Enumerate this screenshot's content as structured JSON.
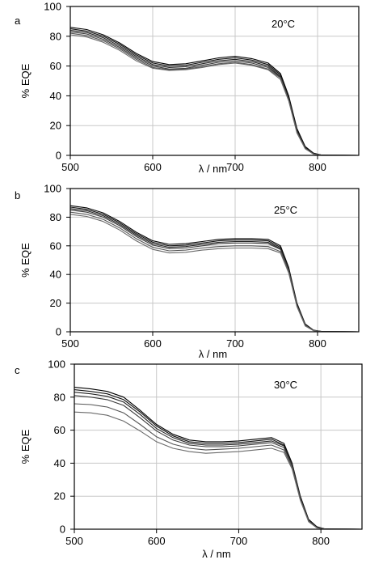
{
  "chart_data": [
    {
      "type": "line",
      "panel_label": "a",
      "annotation": "20°C",
      "xlabel": "λ / nm",
      "ylabel": "% EQE",
      "xlim": [
        500,
        850
      ],
      "ylim": [
        0,
        100
      ],
      "xticks": [
        500,
        600,
        700,
        800
      ],
      "yticks": [
        0,
        20,
        40,
        60,
        80,
        100
      ],
      "grid": true,
      "x": [
        500,
        520,
        540,
        560,
        580,
        600,
        620,
        640,
        660,
        680,
        700,
        720,
        740,
        755,
        765,
        775,
        785,
        795,
        805,
        850
      ],
      "series": [
        {
          "values": [
            86.0,
            84.5,
            81.0,
            75.5,
            68.5,
            63.0,
            61.0,
            61.5,
            63.5,
            65.5,
            66.5,
            65.0,
            62.0,
            55.0,
            40.0,
            18.0,
            6.0,
            1.5,
            0.2,
            0.0
          ]
        },
        {
          "values": [
            85.0,
            83.5,
            80.0,
            74.5,
            67.5,
            62.0,
            60.0,
            60.5,
            62.5,
            64.5,
            65.5,
            64.0,
            61.0,
            54.0,
            39.0,
            17.0,
            5.5,
            1.2,
            0.1,
            0.0
          ]
        },
        {
          "values": [
            84.0,
            82.5,
            79.0,
            73.5,
            66.5,
            61.0,
            59.0,
            59.5,
            61.5,
            63.5,
            64.5,
            63.0,
            60.0,
            53.0,
            38.0,
            16.5,
            5.0,
            1.0,
            0.1,
            0.0
          ]
        },
        {
          "values": [
            83.0,
            81.5,
            78.0,
            72.5,
            65.5,
            60.0,
            58.0,
            58.5,
            60.5,
            62.5,
            63.5,
            62.0,
            59.0,
            52.5,
            37.5,
            16.0,
            5.0,
            1.0,
            0.1,
            0.0
          ]
        },
        {
          "values": [
            82.0,
            80.5,
            77.0,
            71.5,
            64.5,
            59.0,
            57.5,
            58.0,
            59.5,
            61.5,
            62.5,
            61.0,
            58.0,
            52.0,
            37.0,
            15.5,
            4.5,
            1.0,
            0.1,
            0.0
          ]
        },
        {
          "values": [
            81.0,
            79.5,
            76.0,
            70.5,
            63.5,
            58.5,
            57.0,
            57.5,
            59.0,
            61.0,
            62.0,
            60.5,
            57.5,
            51.0,
            36.5,
            15.0,
            4.5,
            0.8,
            0.1,
            0.0
          ]
        }
      ]
    },
    {
      "type": "line",
      "panel_label": "b",
      "annotation": "25°C",
      "xlabel": "λ / nm",
      "ylabel": "% EQE",
      "xlim": [
        500,
        850
      ],
      "ylim": [
        0,
        100
      ],
      "xticks": [
        500,
        600,
        700,
        800
      ],
      "yticks": [
        0,
        20,
        40,
        60,
        80,
        100
      ],
      "grid": true,
      "x": [
        500,
        520,
        540,
        560,
        580,
        600,
        620,
        640,
        660,
        680,
        700,
        720,
        740,
        755,
        765,
        775,
        785,
        795,
        805,
        850
      ],
      "series": [
        {
          "values": [
            88.0,
            86.5,
            83.0,
            77.0,
            69.5,
            63.5,
            61.0,
            61.5,
            63.0,
            64.5,
            65.0,
            65.0,
            64.5,
            60.0,
            45.0,
            20.0,
            5.5,
            1.2,
            0.2,
            0.0
          ]
        },
        {
          "values": [
            87.0,
            85.5,
            82.0,
            76.0,
            68.5,
            62.5,
            60.0,
            60.5,
            62.0,
            63.5,
            64.0,
            64.0,
            63.5,
            59.0,
            44.0,
            19.5,
            5.0,
            1.0,
            0.1,
            0.0
          ]
        },
        {
          "values": [
            86.0,
            84.5,
            81.0,
            75.0,
            67.5,
            61.5,
            59.0,
            59.5,
            61.0,
            62.5,
            63.0,
            63.0,
            62.5,
            58.0,
            43.5,
            19.0,
            5.0,
            1.0,
            0.1,
            0.0
          ]
        },
        {
          "values": [
            85.0,
            83.5,
            80.0,
            74.0,
            66.5,
            60.5,
            58.0,
            58.5,
            60.0,
            61.5,
            62.0,
            62.0,
            61.5,
            57.5,
            43.0,
            18.5,
            4.5,
            1.0,
            0.1,
            0.0
          ]
        },
        {
          "values": [
            83.5,
            82.0,
            78.5,
            72.5,
            65.0,
            59.0,
            56.5,
            57.0,
            58.5,
            59.5,
            60.0,
            60.0,
            59.5,
            56.0,
            42.0,
            18.0,
            4.5,
            0.8,
            0.1,
            0.0
          ]
        },
        {
          "values": [
            82.0,
            80.5,
            77.0,
            71.0,
            63.5,
            57.5,
            55.0,
            55.5,
            57.0,
            58.0,
            58.5,
            58.5,
            58.0,
            55.0,
            41.0,
            17.5,
            4.0,
            0.8,
            0.1,
            0.0
          ]
        }
      ]
    },
    {
      "type": "line",
      "panel_label": "c",
      "annotation": "30°C",
      "xlabel": "λ / nm",
      "ylabel": "% EQE",
      "xlim": [
        500,
        850
      ],
      "ylim": [
        0,
        100
      ],
      "xticks": [
        500,
        600,
        700,
        800
      ],
      "yticks": [
        0,
        20,
        40,
        60,
        80,
        100
      ],
      "grid": true,
      "x": [
        500,
        520,
        540,
        560,
        580,
        600,
        620,
        640,
        660,
        680,
        700,
        720,
        740,
        755,
        765,
        775,
        785,
        795,
        805,
        850
      ],
      "series": [
        {
          "values": [
            86.0,
            85.0,
            83.5,
            80.0,
            72.0,
            63.5,
            57.5,
            54.0,
            53.0,
            53.0,
            53.5,
            54.5,
            55.5,
            52.0,
            40.0,
            20.0,
            6.0,
            1.5,
            0.2,
            0.0
          ]
        },
        {
          "values": [
            84.5,
            83.5,
            82.0,
            78.5,
            71.0,
            62.5,
            56.5,
            53.0,
            52.0,
            52.0,
            52.5,
            53.5,
            54.5,
            51.0,
            39.5,
            19.5,
            5.5,
            1.2,
            0.1,
            0.0
          ]
        },
        {
          "values": [
            83.0,
            82.0,
            80.5,
            77.0,
            69.5,
            61.0,
            55.5,
            52.0,
            51.0,
            51.0,
            51.5,
            52.5,
            53.5,
            50.5,
            39.0,
            19.0,
            5.5,
            1.0,
            0.1,
            0.0
          ]
        },
        {
          "values": [
            81.0,
            80.0,
            78.5,
            75.0,
            67.5,
            59.5,
            54.0,
            51.0,
            50.0,
            50.0,
            50.5,
            51.5,
            52.5,
            49.5,
            38.5,
            18.5,
            5.0,
            1.0,
            0.1,
            0.0
          ]
        },
        {
          "values": [
            76.0,
            75.5,
            74.0,
            70.5,
            63.5,
            56.0,
            51.5,
            49.0,
            48.0,
            48.5,
            49.0,
            50.0,
            51.0,
            48.0,
            37.5,
            18.0,
            5.0,
            1.0,
            0.1,
            0.0
          ]
        },
        {
          "values": [
            71.0,
            70.5,
            69.0,
            65.5,
            59.5,
            53.0,
            49.0,
            47.0,
            46.0,
            46.5,
            47.0,
            48.0,
            49.0,
            46.5,
            36.5,
            17.5,
            4.5,
            0.8,
            0.1,
            0.0
          ]
        }
      ]
    }
  ]
}
